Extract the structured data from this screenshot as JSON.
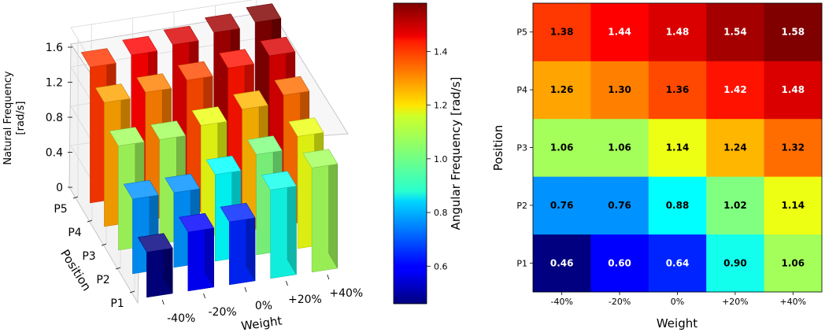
{
  "chart_data": [
    {
      "type": "bar3d",
      "zlabel_line1": "Natural Frequency",
      "zlabel_line2": "[rad/s]",
      "xlabel": "Weight",
      "ylabel": "Position",
      "x_categories": [
        "-40%",
        "-20%",
        "0%",
        "+20%",
        "+40%"
      ],
      "y_categories": [
        "P1",
        "P2",
        "P3",
        "P4",
        "P5"
      ],
      "z_ticks": [
        "0",
        "0.4",
        "0.8",
        "1.2",
        "1.6"
      ],
      "zlim": [
        0,
        1.6
      ]
    },
    {
      "type": "colorbar",
      "label": "Angular Frequency [rad/s]",
      "range": [
        0.46,
        1.58
      ],
      "ticks": [
        "0.6",
        "0.8",
        "1.0",
        "1.2",
        "1.4"
      ]
    },
    {
      "type": "heatmap",
      "xlabel": "Weight",
      "ylabel": "Position",
      "x_categories": [
        "-40%",
        "-20%",
        "0%",
        "+20%",
        "+40%"
      ],
      "y_categories": [
        "P1",
        "P2",
        "P3",
        "P4",
        "P5"
      ],
      "values": [
        [
          0.46,
          0.6,
          0.64,
          0.9,
          1.06
        ],
        [
          0.76,
          0.76,
          0.88,
          1.02,
          1.14
        ],
        [
          1.06,
          1.06,
          1.14,
          1.24,
          1.32
        ],
        [
          1.26,
          1.3,
          1.36,
          1.42,
          1.48
        ],
        [
          1.38,
          1.44,
          1.48,
          1.54,
          1.58
        ]
      ],
      "value_labels": [
        [
          "0.46",
          "0.60",
          "0.64",
          "0.90",
          "1.06"
        ],
        [
          "0.76",
          "0.76",
          "0.88",
          "1.02",
          "1.14"
        ],
        [
          "1.06",
          "1.06",
          "1.14",
          "1.24",
          "1.32"
        ],
        [
          "1.26",
          "1.30",
          "1.36",
          "1.42",
          "1.48"
        ],
        [
          "1.38",
          "1.44",
          "1.48",
          "1.54",
          "1.58"
        ]
      ]
    }
  ]
}
